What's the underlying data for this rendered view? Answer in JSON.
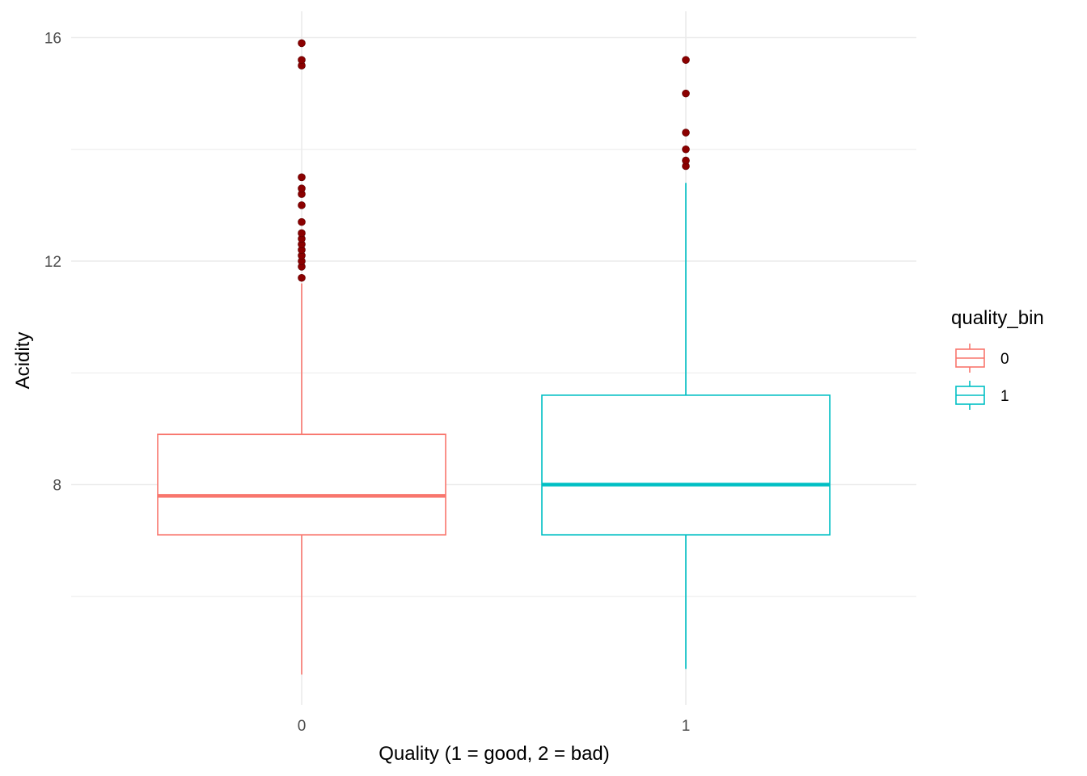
{
  "chart_data": {
    "type": "boxplot",
    "title": "",
    "xlabel": "Quality (1 = good, 2 = bad)",
    "ylabel": "Acidity",
    "ylim": [
      4.6,
      16.5
    ],
    "y_ticks": [
      8,
      12,
      16
    ],
    "y_minor_ticks": [
      6,
      10,
      14
    ],
    "grid": true,
    "categories": [
      "0",
      "1"
    ],
    "legend": {
      "title": "quality_bin",
      "placement": "right",
      "entries": [
        "0",
        "1"
      ]
    },
    "outlier_color": "#8b0000",
    "series": [
      {
        "name": "0",
        "color": "#f8766d",
        "min": 4.6,
        "q1": 7.1,
        "median": 7.8,
        "q3": 8.9,
        "max": 11.6,
        "outliers": [
          11.7,
          11.9,
          12.0,
          12.1,
          12.2,
          12.3,
          12.4,
          12.5,
          12.7,
          13.0,
          13.2,
          13.3,
          13.5,
          15.5,
          15.6,
          15.9
        ]
      },
      {
        "name": "1",
        "color": "#00bfc4",
        "min": 4.7,
        "q1": 7.1,
        "median": 8.0,
        "q3": 9.6,
        "max": 13.4,
        "outliers": [
          13.7,
          13.8,
          14.0,
          14.3,
          15.0,
          15.6
        ]
      }
    ]
  }
}
